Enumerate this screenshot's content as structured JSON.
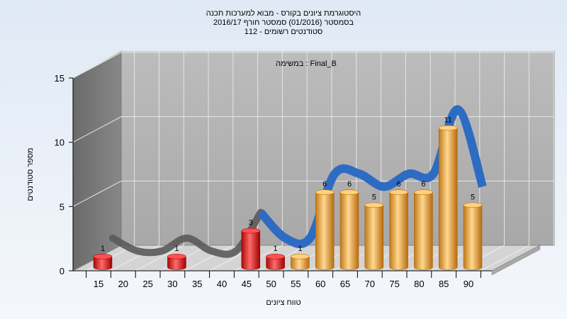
{
  "title": {
    "line1": "היסטוגרמת ציונים בקורס - מבוא למערכות תכנה",
    "line2": "בסמסטר  (01/2016)  סמסטר חורף 2016/17",
    "line3": "סטודנטים רשומים - 112"
  },
  "annotation": "במשימה : Final_B",
  "chart_data": {
    "type": "bar",
    "title": "היסטוגרמת ציונים בקורס - מבוא למערכות תכנה",
    "subtitle": [
      "בסמסטר  (01/2016)  סמסטר חורף 2016/17",
      "סטודנטים רשומים - 112"
    ],
    "xlabel": "טווח ציונים",
    "ylabel": "מספר סטודנטים",
    "categories": [
      "15",
      "20",
      "25",
      "30",
      "35",
      "40",
      "45",
      "50",
      "55",
      "60",
      "65",
      "70",
      "75",
      "80",
      "85",
      "90"
    ],
    "values": [
      1,
      0,
      0,
      1,
      0,
      0,
      3,
      1,
      1,
      6,
      6,
      5,
      6,
      6,
      11,
      5
    ],
    "ylim": [
      0,
      15
    ],
    "yticks": [
      0,
      5,
      10,
      15
    ],
    "grid": true,
    "threshold": 55,
    "colors": {
      "below_threshold": "#d81818",
      "above_threshold": "#f0a838",
      "curve": "#2e6cc4",
      "curve_flat": "#5a5a5a"
    }
  }
}
